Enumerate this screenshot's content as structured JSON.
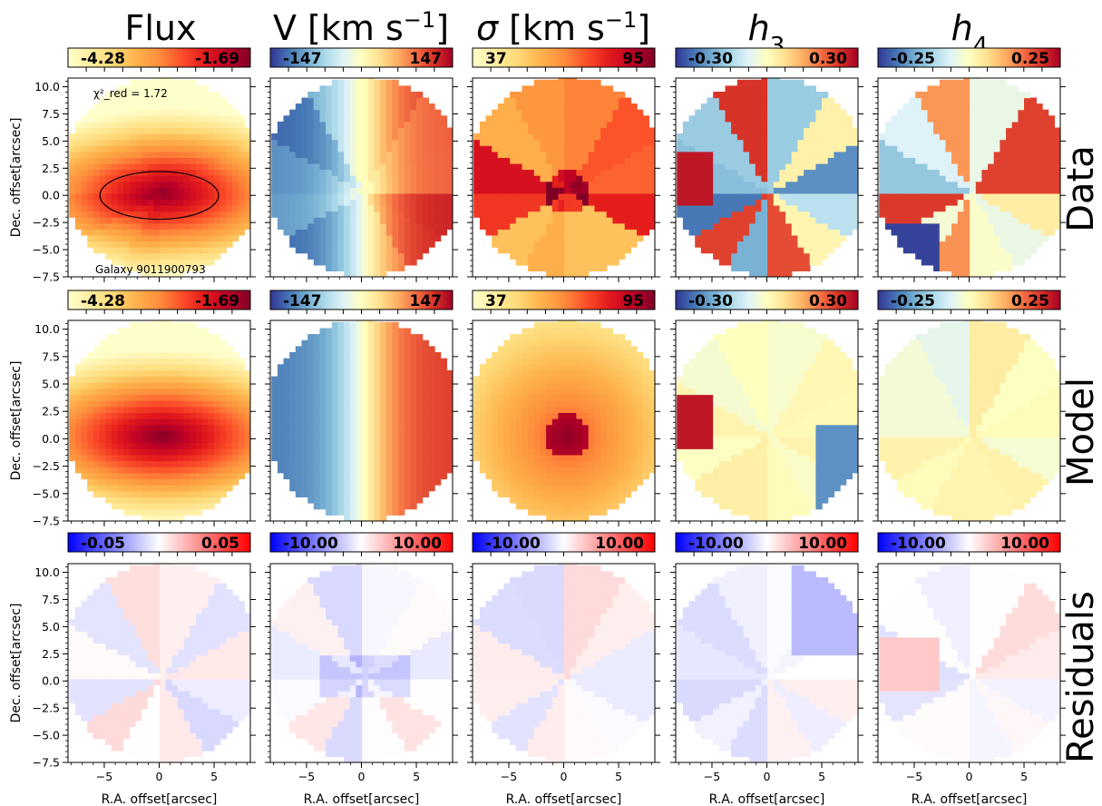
{
  "chart_data": {
    "type": "heatmap",
    "layout": "3 rows x 5 columns of 2D kinematic maps",
    "galaxy_label": "Galaxy 9011900793",
    "chi2_annotation": "χ²_red = 1.72",
    "columns": [
      {
        "title": "Flux"
      },
      {
        "title": "V [km s⁻¹]"
      },
      {
        "title": "σ [km s⁻¹]"
      },
      {
        "title": "h₃"
      },
      {
        "title": "h₄"
      }
    ],
    "rows": [
      "Data",
      "Model",
      "Residuals"
    ],
    "colorbars": {
      "data_model": [
        {
          "min": "-4.28",
          "max": "-1.69",
          "cmap": "YlOrRd"
        },
        {
          "min": "-147",
          "max": "147",
          "cmap": "RdYlBu_r"
        },
        {
          "min": "37",
          "max": "95",
          "cmap": "YlOrRd"
        },
        {
          "min": "-0.30",
          "max": "0.30",
          "cmap": "RdYlBu_r"
        },
        {
          "min": "-0.25",
          "max": "0.25",
          "cmap": "RdYlBu_r"
        }
      ],
      "residuals": [
        {
          "min": "-0.05",
          "max": "0.05",
          "cmap": "bwr"
        },
        {
          "min": "-10.00",
          "max": "10.00",
          "cmap": "bwr"
        },
        {
          "min": "-10.00",
          "max": "10.00",
          "cmap": "bwr"
        },
        {
          "min": "-10.00",
          "max": "10.00",
          "cmap": "bwr"
        },
        {
          "min": "-10.00",
          "max": "10.00",
          "cmap": "bwr"
        }
      ]
    },
    "x_axis": {
      "label": "R.A. offset[arcsec]",
      "ticks": [
        -5,
        0,
        5
      ],
      "range": [
        -8.3,
        8.3
      ]
    },
    "y_axis": {
      "label": "Dec. offset[arcsec]",
      "ticks": [
        -7.5,
        -5.0,
        -2.5,
        0.0,
        2.5,
        5.0,
        7.5,
        10.0
      ],
      "range": [
        -7.5,
        10.8
      ]
    },
    "field_of_view": {
      "center": [
        0,
        1.5
      ],
      "radius_arcsec": 8.0
    },
    "ellipse": {
      "center": [
        0,
        0
      ],
      "semi_major": 5.4,
      "semi_minor": 2.2
    }
  }
}
